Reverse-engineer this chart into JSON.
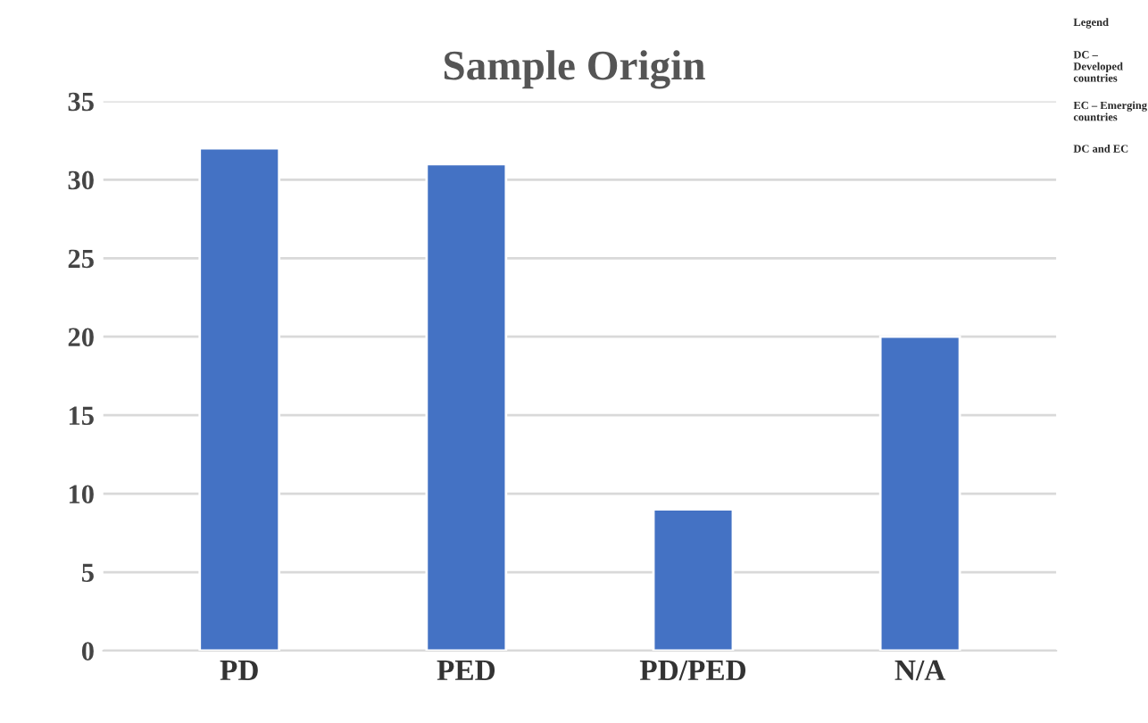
{
  "chart_data": {
    "type": "bar",
    "title": "Sample Origin",
    "categories": [
      "PD",
      "PED",
      "PD/PED",
      "N/A"
    ],
    "values": [
      32,
      31,
      9,
      20
    ],
    "color": "#4472c4",
    "ylim": [
      0,
      35
    ],
    "yticks": [
      0,
      5,
      10,
      15,
      20,
      25,
      30,
      35
    ],
    "grid": "y",
    "annotations": [
      "Legend",
      "DC – Developed countries",
      "EC – Emerging countries",
      "DC and EC"
    ]
  }
}
